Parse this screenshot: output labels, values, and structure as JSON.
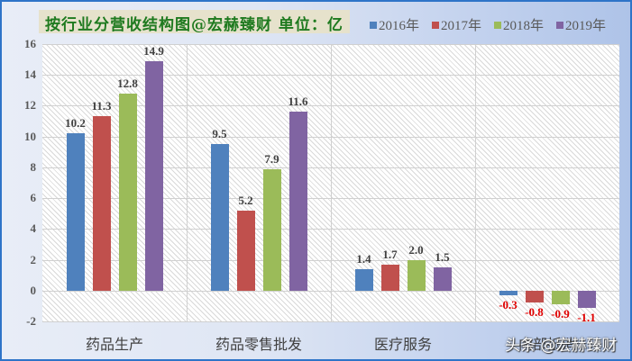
{
  "title": "按行业分营收结构图@宏赫臻财  单位：亿",
  "legend": [
    {
      "label": "2016年",
      "color": "#4f81bd"
    },
    {
      "label": "2017年",
      "color": "#c0504d"
    },
    {
      "label": "2018年",
      "color": "#9bbb59"
    },
    {
      "label": "2019年",
      "color": "#8064a2"
    }
  ],
  "watermark": "头条 @宏赫臻财",
  "chart_data": {
    "type": "bar",
    "title": "按行业分营收结构图@宏赫臻财  单位：亿",
    "xlabel": "",
    "ylabel": "",
    "ylim": [
      -2,
      16
    ],
    "yticks": [
      -2,
      0,
      2,
      4,
      6,
      8,
      10,
      12,
      14,
      16
    ],
    "grid": true,
    "legend_position": "top-right",
    "categories": [
      "药品生产",
      "药品零售批发",
      "医疗服务",
      "内部抵消"
    ],
    "series": [
      {
        "name": "2016年",
        "color": "#4f81bd",
        "values": [
          10.2,
          9.5,
          1.4,
          -0.3
        ]
      },
      {
        "name": "2017年",
        "color": "#c0504d",
        "values": [
          11.3,
          5.2,
          1.7,
          -0.8
        ]
      },
      {
        "name": "2018年",
        "color": "#9bbb59",
        "values": [
          12.8,
          7.9,
          2.0,
          -0.9
        ]
      },
      {
        "name": "2019年",
        "color": "#8064a2",
        "values": [
          14.9,
          11.6,
          1.5,
          -1.1
        ]
      }
    ],
    "value_labels": [
      [
        "10.2",
        "9.5",
        "1.4",
        "-0.3"
      ],
      [
        "11.3",
        "5.2",
        "1.7",
        "-0.8"
      ],
      [
        "12.8",
        "7.9",
        "2.0",
        "-0.9"
      ],
      [
        "14.9",
        "11.6",
        "1.5",
        "-1.1"
      ]
    ]
  }
}
